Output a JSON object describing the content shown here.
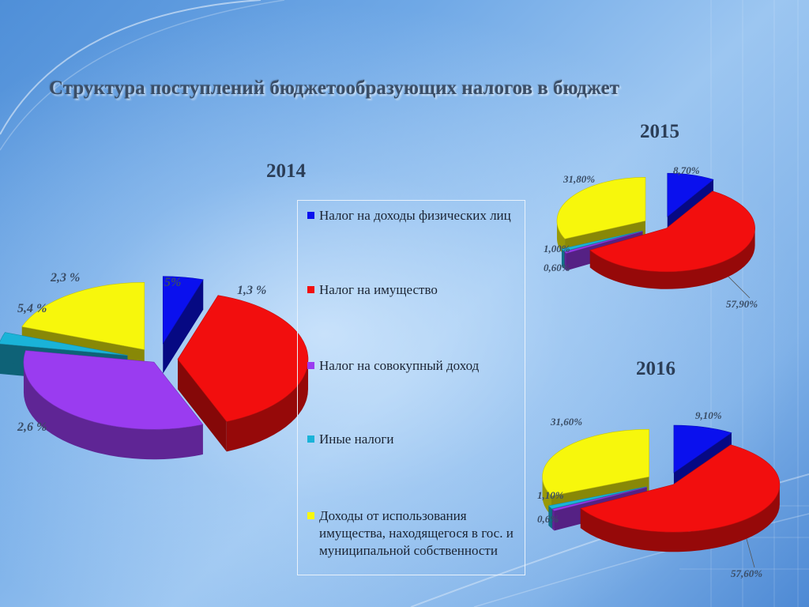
{
  "title": "Структура поступлений бюджетообразующих налогов в бюджет",
  "colors": {
    "blue": "#0a10ee",
    "red": "#f20e0e",
    "purple": "#9a3cf0",
    "teal": "#1ab3d8",
    "yellow": "#f7f70c"
  },
  "legend": [
    {
      "label": "Налог на доходы физических лиц",
      "color": "#0a10ee"
    },
    {
      "label": "Налог на имущество",
      "color": "#f20e0e"
    },
    {
      "label": "Налог на совокупный доход",
      "color": "#9a3cf0"
    },
    {
      "label": "Иные налоги",
      "color": "#1ab3d8"
    },
    {
      "label": "Доходы от использования имущества, находящегося в гос. и муниципальной собственности",
      "color": "#f7f70c"
    }
  ],
  "chart_data": [
    {
      "type": "pie",
      "title": "2014",
      "categories": [
        "Налог на доходы физических лиц",
        "Налог на имущество",
        "Налог на совокупный доход",
        "Иные налоги",
        "Доходы от использования имущества, находящегося в гос. и муниципальной собственности"
      ],
      "labels": [
        "5%",
        "1,3 %",
        "2,6 %",
        "5,4 %",
        "2,3 %"
      ],
      "slice_degrees": [
        18,
        140,
        122,
        10,
        70
      ]
    },
    {
      "type": "pie",
      "title": "2015",
      "categories": [
        "Налог на доходы физических лиц",
        "Налог на имущество",
        "Налог на совокупный доход",
        "Иные налоги",
        "Доходы от использования имущества, находящегося в гос. и муниципальной собственности"
      ],
      "values": [
        8.7,
        57.9,
        0.6,
        1.0,
        31.8
      ],
      "labels": [
        "8,70%",
        "57,90%",
        "0,60%",
        "1,00%",
        "31,80%"
      ]
    },
    {
      "type": "pie",
      "title": "2016",
      "categories": [
        "Налог на доходы физических лиц",
        "Налог на имущество",
        "Налог на совокупный доход",
        "Иные налоги",
        "Доходы от использования имущества, находящегося в гос. и муниципальной собственности"
      ],
      "values": [
        9.1,
        57.6,
        0.6,
        1.1,
        31.6
      ],
      "labels": [
        "9,10%",
        "57,60%",
        "0,6%",
        "1,10%",
        "31,60%"
      ]
    }
  ]
}
